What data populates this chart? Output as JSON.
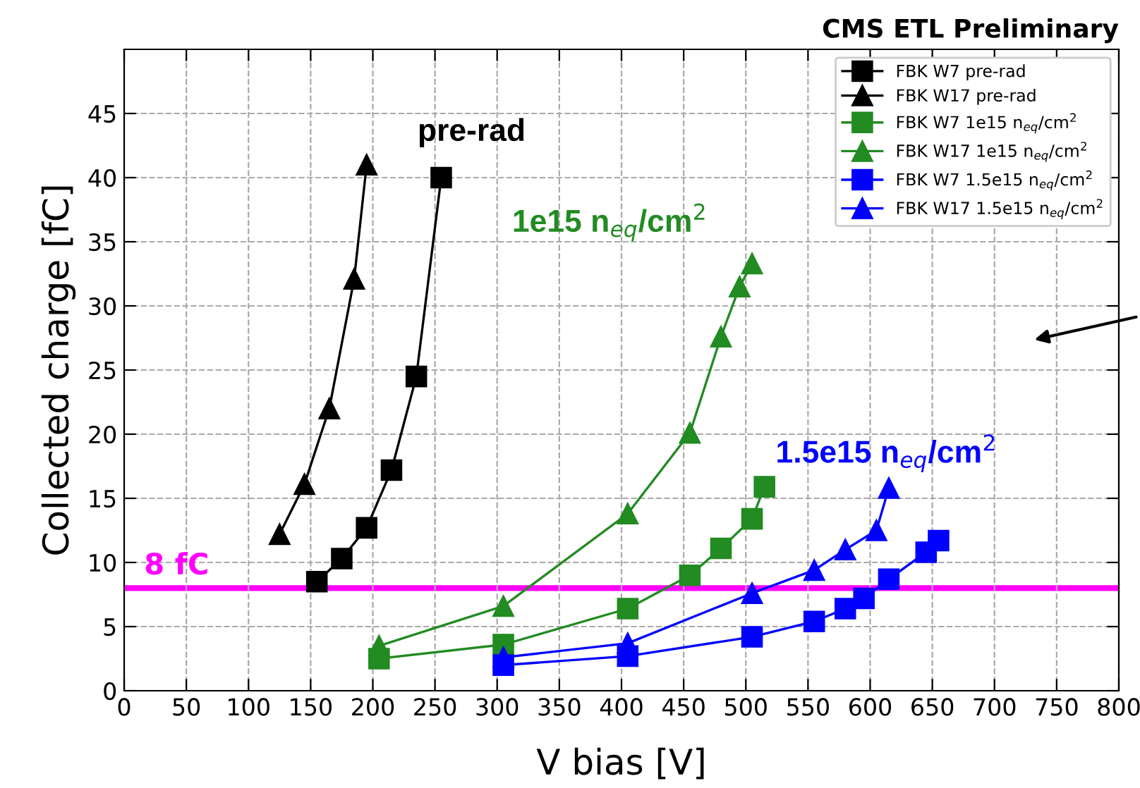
{
  "chart_data": {
    "type": "line",
    "title": "CMS ETL Preliminary",
    "xlabel": "V bias [V]",
    "ylabel": "Collected charge [fC]",
    "xlim": [
      0,
      800
    ],
    "xticks": [
      0,
      50,
      100,
      150,
      200,
      250,
      300,
      350,
      400,
      450,
      500,
      550,
      600,
      650,
      700,
      750,
      800
    ],
    "ylim": [
      0,
      50
    ],
    "yticks": [
      0,
      5,
      10,
      15,
      20,
      25,
      30,
      35,
      40,
      45
    ],
    "grid": true,
    "legend": "top right",
    "line_style": "solid",
    "series": [
      {
        "name": "FBK W7 pre-rad",
        "color": "#000000",
        "marker": "square",
        "x": [
          155,
          175,
          195,
          215,
          235,
          255
        ],
        "values": [
          8.5,
          10.3,
          12.7,
          17.2,
          24.5,
          40.0
        ]
      },
      {
        "name": "FBK W17 pre-rad",
        "color": "#000000",
        "marker": "triangle",
        "x": [
          125,
          145,
          165,
          185,
          195
        ],
        "values": [
          12.2,
          16.1,
          22.0,
          32.1,
          41.0
        ]
      },
      {
        "name": "FBK W7 1e15 n$_{eq}$/cm$^{2}$",
        "color": "#228b22",
        "marker": "square",
        "x": [
          205,
          305,
          405,
          455,
          480,
          505,
          515
        ],
        "values": [
          2.5,
          3.6,
          6.4,
          9.0,
          11.1,
          13.4,
          15.9
        ]
      },
      {
        "name": "FBK W17 1e15 n$_{eq}$/cm$^{2}$",
        "color": "#228b22",
        "marker": "triangle",
        "x": [
          205,
          305,
          405,
          455,
          480,
          495,
          505
        ],
        "values": [
          3.5,
          6.6,
          13.8,
          20.1,
          27.6,
          31.5,
          33.3
        ]
      },
      {
        "name": "FBK W7 1.5e15 n$_{eq}$/cm$^{2}$",
        "color": "#0000ff",
        "marker": "square",
        "x": [
          305,
          405,
          505,
          555,
          580,
          595,
          615,
          645,
          655
        ],
        "values": [
          2.0,
          2.7,
          4.2,
          5.4,
          6.4,
          7.2,
          8.7,
          10.8,
          11.7
        ]
      },
      {
        "name": "FBK W17 1.5e15 n$_{eq}$/cm$^{2}$",
        "color": "#0000ff",
        "marker": "triangle",
        "x": [
          305,
          405,
          505,
          555,
          580,
          605,
          615
        ],
        "values": [
          2.6,
          3.7,
          7.6,
          9.4,
          11.0,
          12.5,
          15.8
        ]
      }
    ],
    "ref_lines": [
      {
        "axis": "y",
        "value": 8,
        "label": "8 fC",
        "color": "#ff00ff"
      }
    ],
    "annotations": [
      "pre-rad",
      "1e15 n$_{eq}$/cm$^{2}$",
      "1.5e15 n$_{eq}$/cm$^{2}$"
    ]
  }
}
